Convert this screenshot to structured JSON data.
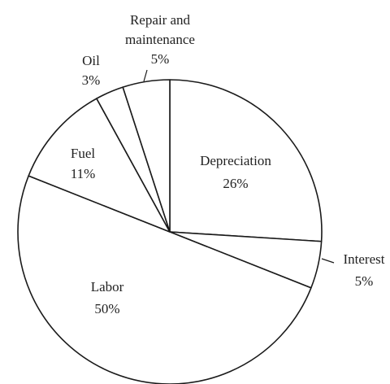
{
  "chart_data": {
    "type": "pie",
    "title": "",
    "slices": [
      {
        "name": "Depreciation",
        "value": 26,
        "value_label": "26%"
      },
      {
        "name": "Interest",
        "value": 5,
        "value_label": "5%"
      },
      {
        "name": "Labor",
        "value": 50,
        "value_label": "50%"
      },
      {
        "name": "Fuel",
        "value": 11,
        "value_label": "11%"
      },
      {
        "name": "Oil",
        "value": 3,
        "value_label": "3%"
      },
      {
        "name": "Repair and maintenance",
        "value": 5,
        "value_label": "5%"
      }
    ],
    "start_angle": "12 o'clock",
    "direction": "clockwise",
    "legend": "none",
    "colors": {
      "fill": "#ffffff",
      "stroke": "#1a1a1a",
      "text": "#222222"
    }
  }
}
